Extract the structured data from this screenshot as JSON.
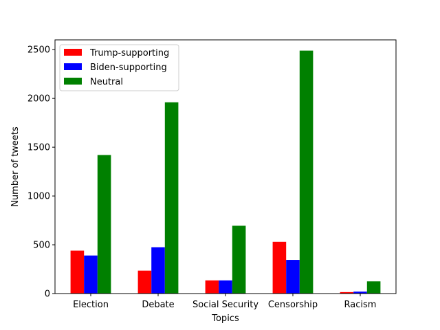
{
  "chart_data": {
    "type": "bar",
    "title": "",
    "xlabel": "Topics",
    "ylabel": "Number of tweets",
    "categories": [
      "Election",
      "Debate",
      "Social Security",
      "Censorship",
      "Racism"
    ],
    "series": [
      {
        "name": "Trump-supporting",
        "color": "#ff0000",
        "values": [
          440,
          235,
          135,
          530,
          15
        ]
      },
      {
        "name": "Biden-supporting",
        "color": "#0000ff",
        "values": [
          390,
          475,
          135,
          345,
          20
        ]
      },
      {
        "name": "Neutral",
        "color": "#008000",
        "values": [
          1420,
          1960,
          695,
          2490,
          125
        ]
      }
    ],
    "ylim": [
      0,
      2600
    ],
    "yticks": [
      0,
      500,
      1000,
      1500,
      2000,
      2500
    ],
    "grid": false,
    "legend_position": "top-left"
  }
}
